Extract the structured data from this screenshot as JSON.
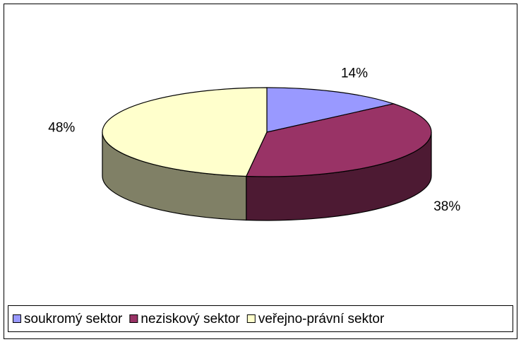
{
  "chart_data": {
    "type": "pie3d",
    "categories": [
      "soukromý sektor",
      "neziskový sektor",
      "veřejno-právní sektor"
    ],
    "values": [
      14,
      38,
      48
    ],
    "value_labels": [
      "14%",
      "38%",
      "48%"
    ],
    "colors": [
      "#9999ff",
      "#993366",
      "#ffffcc"
    ],
    "legend": "bottom"
  }
}
